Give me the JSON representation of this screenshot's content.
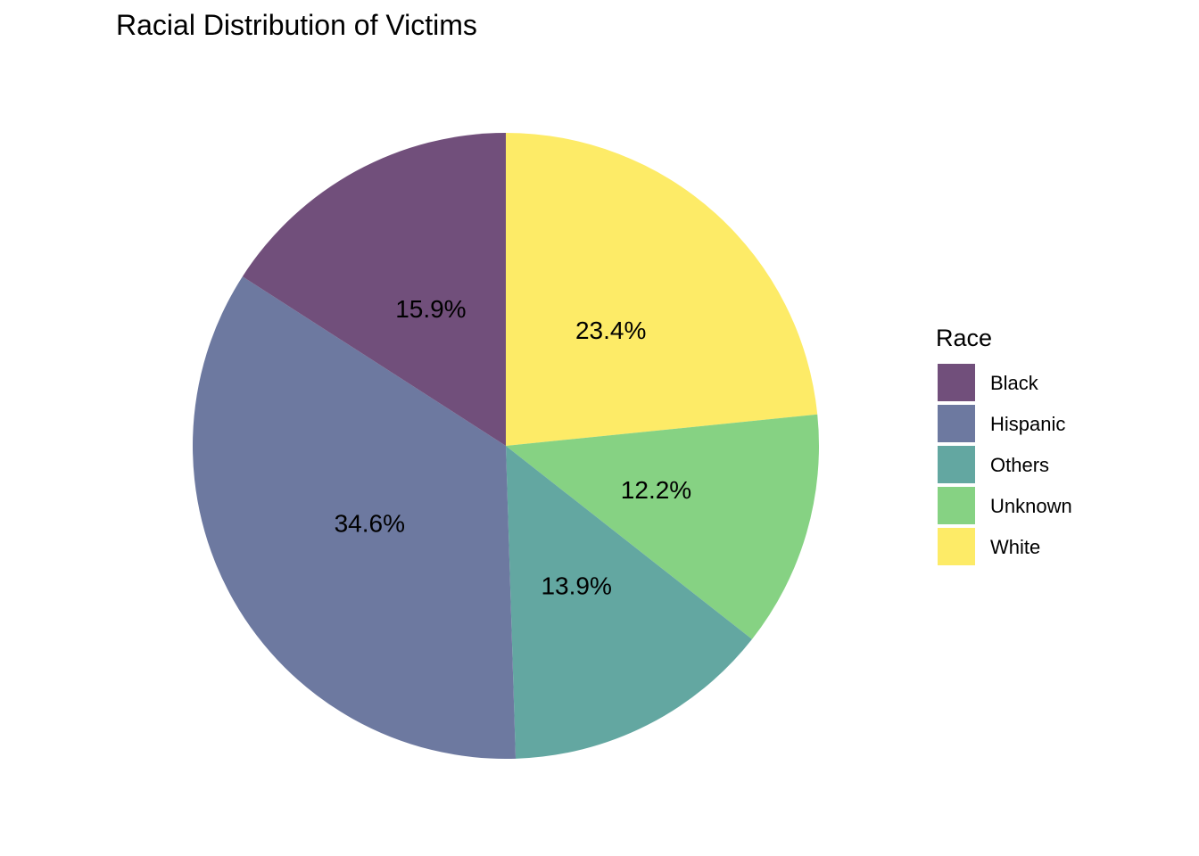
{
  "chart_data": {
    "type": "pie",
    "title": "Racial Distribution of Victims",
    "legend_title": "Race",
    "legend_position": "right",
    "start_angle_deg": 0,
    "direction": "clockwise",
    "label_order": [
      "White",
      "Unknown",
      "Others",
      "Hispanic",
      "Black"
    ],
    "slices": [
      {
        "name": "Black",
        "value": 15.9,
        "label": "15.9%",
        "color": "#714f7b"
      },
      {
        "name": "Hispanic",
        "value": 34.6,
        "label": "34.6%",
        "color": "#6d79a0"
      },
      {
        "name": "Others",
        "value": 13.9,
        "label": "13.9%",
        "color": "#63a7a1"
      },
      {
        "name": "Unknown",
        "value": 12.2,
        "label": "12.2%",
        "color": "#86d283"
      },
      {
        "name": "White",
        "value": 23.4,
        "label": "23.4%",
        "color": "#fdeb67"
      }
    ]
  }
}
